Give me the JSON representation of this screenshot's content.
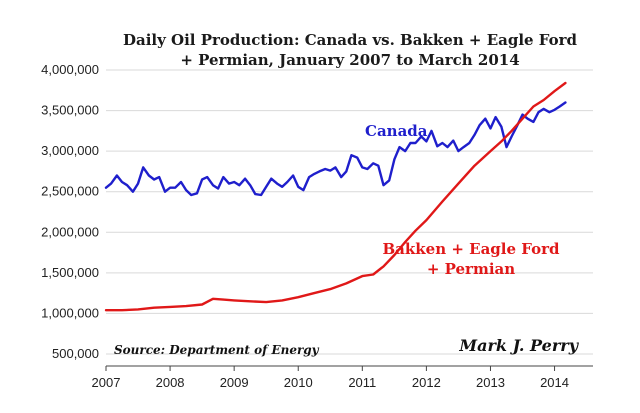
{
  "chart_data": {
    "type": "line",
    "title_lines": [
      "Daily Oil Production: Canada vs. Bakken + Eagle Ford",
      "+ Permian, January 2007 to March 2014"
    ],
    "xlabel": "",
    "ylabel": "",
    "x_ticks": [
      "2007",
      "2008",
      "2009",
      "2010",
      "2011",
      "2012",
      "2013",
      "2014"
    ],
    "y_ticks": [
      "500,000",
      "1,000,000",
      "1,500,000",
      "2,000,000",
      "2,500,000",
      "3,000,000",
      "3,500,000",
      "4,000,000"
    ],
    "xlim": [
      2007.0,
      2014.6
    ],
    "ylim": [
      500000,
      4000000
    ],
    "grid": true,
    "series": [
      {
        "name": "Canada",
        "label_lines": [
          "Canada"
        ],
        "color": "#1f1fcc",
        "x": [
          2007.0,
          2007.08,
          2007.17,
          2007.25,
          2007.33,
          2007.42,
          2007.5,
          2007.58,
          2007.67,
          2007.75,
          2007.83,
          2007.92,
          2008.0,
          2008.08,
          2008.17,
          2008.25,
          2008.33,
          2008.42,
          2008.5,
          2008.58,
          2008.67,
          2008.75,
          2008.83,
          2008.92,
          2009.0,
          2009.08,
          2009.17,
          2009.25,
          2009.33,
          2009.42,
          2009.5,
          2009.58,
          2009.67,
          2009.75,
          2009.83,
          2009.92,
          2010.0,
          2010.08,
          2010.17,
          2010.25,
          2010.33,
          2010.42,
          2010.5,
          2010.58,
          2010.67,
          2010.75,
          2010.83,
          2010.92,
          2011.0,
          2011.08,
          2011.17,
          2011.25,
          2011.33,
          2011.42,
          2011.5,
          2011.58,
          2011.67,
          2011.75,
          2011.83,
          2011.92,
          2012.0,
          2012.08,
          2012.17,
          2012.25,
          2012.33,
          2012.42,
          2012.5,
          2012.58,
          2012.67,
          2012.75,
          2012.83,
          2012.92,
          2013.0,
          2013.08,
          2013.17,
          2013.25,
          2013.33,
          2013.42,
          2013.5,
          2013.58,
          2013.67,
          2013.75,
          2013.83,
          2013.92,
          2014.0,
          2014.08,
          2014.17
        ],
        "values": [
          2550000,
          2600000,
          2700000,
          2620000,
          2580000,
          2500000,
          2600000,
          2800000,
          2700000,
          2650000,
          2680000,
          2500000,
          2550000,
          2550000,
          2620000,
          2520000,
          2460000,
          2480000,
          2650000,
          2680000,
          2580000,
          2540000,
          2680000,
          2600000,
          2620000,
          2580000,
          2660000,
          2580000,
          2470000,
          2460000,
          2560000,
          2660000,
          2600000,
          2560000,
          2620000,
          2700000,
          2560000,
          2520000,
          2680000,
          2720000,
          2750000,
          2780000,
          2760000,
          2800000,
          2680000,
          2750000,
          2950000,
          2920000,
          2800000,
          2780000,
          2850000,
          2820000,
          2580000,
          2640000,
          2900000,
          3050000,
          3000000,
          3100000,
          3100000,
          3180000,
          3120000,
          3250000,
          3060000,
          3100000,
          3050000,
          3130000,
          3000000,
          3050000,
          3100000,
          3200000,
          3320000,
          3400000,
          3280000,
          3420000,
          3300000,
          3050000,
          3180000,
          3320000,
          3450000,
          3400000,
          3360000,
          3480000,
          3520000,
          3480000,
          3510000,
          3550000,
          3600000
        ]
      },
      {
        "name": "Bakken + Eagle Ford + Permian",
        "label_lines": [
          "Bakken + Eagle Ford",
          "+ Permian"
        ],
        "color": "#e01818",
        "x": [
          2007.0,
          2007.25,
          2007.5,
          2007.75,
          2008.0,
          2008.25,
          2008.5,
          2008.67,
          2008.83,
          2009.0,
          2009.25,
          2009.5,
          2009.75,
          2010.0,
          2010.25,
          2010.5,
          2010.75,
          2011.0,
          2011.17,
          2011.33,
          2011.5,
          2011.67,
          2011.83,
          2012.0,
          2012.25,
          2012.5,
          2012.75,
          2013.0,
          2013.17,
          2013.33,
          2013.5,
          2013.67,
          2013.83,
          2014.0,
          2014.17
        ],
        "values": [
          1040000,
          1040000,
          1050000,
          1070000,
          1080000,
          1090000,
          1110000,
          1180000,
          1170000,
          1160000,
          1150000,
          1140000,
          1160000,
          1200000,
          1250000,
          1300000,
          1370000,
          1460000,
          1480000,
          1580000,
          1720000,
          1880000,
          2020000,
          2150000,
          2380000,
          2600000,
          2820000,
          3000000,
          3120000,
          3250000,
          3400000,
          3550000,
          3630000,
          3740000,
          3840000
        ]
      }
    ],
    "source": "Source: Department of Energy",
    "signature": "Mark J. Perry"
  }
}
